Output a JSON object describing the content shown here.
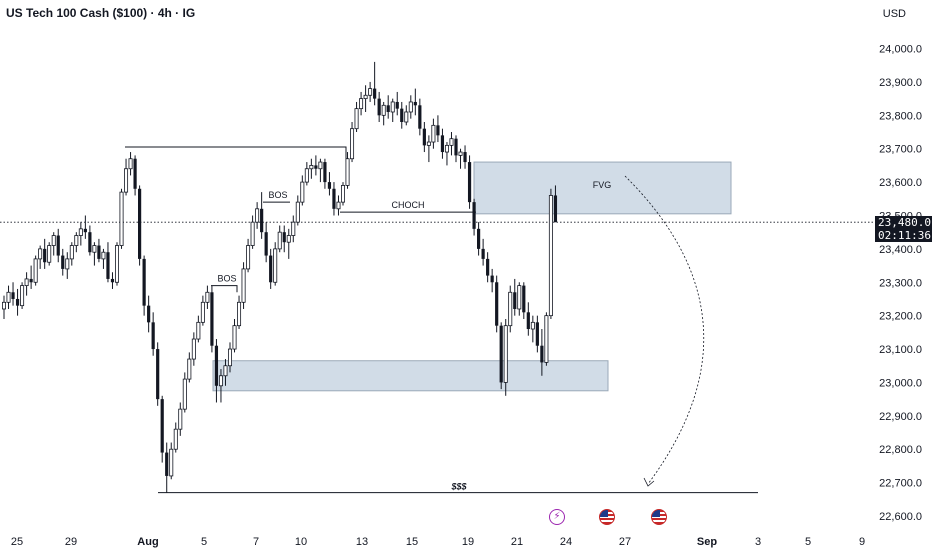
{
  "header": {
    "title": "US Tech 100 Cash ($100) · 4h · IG",
    "currency": "USD"
  },
  "price_tag": {
    "price": "23,480.0",
    "countdown": "02:11:36"
  },
  "colors": {
    "candle": "#131722",
    "zone_fill": "#c9d6e3",
    "zone_stroke": "#9aa9b8",
    "grid": "#e0e3eb",
    "event_bolt": "#9c27b0",
    "event_flag": "#c62828"
  },
  "events": [
    "lightning-icon",
    "us-flag-icon",
    "us-flag-icon"
  ],
  "chart_data": {
    "type": "candlestick",
    "title": "US Tech 100 Cash ($100) · 4h · IG",
    "y_axis": {
      "unit": "USD",
      "range": [
        22600,
        24000
      ],
      "tick_labels": [
        "24,000.0",
        "23,900.0",
        "23,800.0",
        "23,700.0",
        "23,600.0",
        "23,500.0",
        "23,400.0",
        "23,300.0",
        "23,200.0",
        "23,100.0",
        "23,000.0",
        "22,900.0",
        "22,800.0",
        "22,700.0",
        "22,600.0"
      ],
      "ticks": [
        24000,
        23900,
        23800,
        23700,
        23600,
        23500,
        23400,
        23300,
        23200,
        23100,
        23000,
        22900,
        22800,
        22700,
        22600
      ]
    },
    "x_axis": {
      "tick_labels": [
        "25",
        "29",
        "Aug",
        "5",
        "7",
        "10",
        "13",
        "15",
        "19",
        "21",
        "24",
        "27",
        "Sep",
        "3",
        "5",
        "9"
      ],
      "bold_labels": [
        "Aug",
        "Sep"
      ]
    },
    "current_price": 23480,
    "grid": false,
    "candles": [
      [
        23220,
        23260,
        23190,
        23240
      ],
      [
        23240,
        23290,
        23220,
        23270
      ],
      [
        23270,
        23300,
        23230,
        23250
      ],
      [
        23250,
        23280,
        23200,
        23230
      ],
      [
        23230,
        23300,
        23220,
        23290
      ],
      [
        23290,
        23330,
        23260,
        23310
      ],
      [
        23310,
        23350,
        23280,
        23300
      ],
      [
        23300,
        23380,
        23290,
        23370
      ],
      [
        23370,
        23410,
        23340,
        23400
      ],
      [
        23400,
        23430,
        23340,
        23360
      ],
      [
        23360,
        23420,
        23350,
        23410
      ],
      [
        23410,
        23450,
        23380,
        23440
      ],
      [
        23440,
        23460,
        23360,
        23380
      ],
      [
        23380,
        23400,
        23320,
        23340
      ],
      [
        23340,
        23390,
        23310,
        23370
      ],
      [
        23370,
        23420,
        23350,
        23410
      ],
      [
        23410,
        23450,
        23390,
        23440
      ],
      [
        23440,
        23480,
        23410,
        23460
      ],
      [
        23460,
        23500,
        23430,
        23450
      ],
      [
        23450,
        23470,
        23380,
        23390
      ],
      [
        23390,
        23420,
        23350,
        23410
      ],
      [
        23410,
        23430,
        23360,
        23370
      ],
      [
        23370,
        23400,
        23340,
        23390
      ],
      [
        23390,
        23420,
        23300,
        23310
      ],
      [
        23310,
        23330,
        23280,
        23300
      ],
      [
        23300,
        23420,
        23290,
        23410
      ],
      [
        23410,
        23580,
        23400,
        23570
      ],
      [
        23570,
        23670,
        23560,
        23640
      ],
      [
        23640,
        23690,
        23620,
        23670
      ],
      [
        23670,
        23680,
        23560,
        23580
      ],
      [
        23580,
        23590,
        23350,
        23370
      ],
      [
        23370,
        23380,
        23200,
        23230
      ],
      [
        23230,
        23260,
        23150,
        23180
      ],
      [
        23180,
        23210,
        23080,
        23100
      ],
      [
        23100,
        23120,
        22930,
        22950
      ],
      [
        22950,
        22960,
        22760,
        22790
      ],
      [
        22790,
        22820,
        22670,
        22720
      ],
      [
        22720,
        22820,
        22710,
        22800
      ],
      [
        22800,
        22880,
        22790,
        22860
      ],
      [
        22860,
        22940,
        22840,
        22920
      ],
      [
        22920,
        23030,
        22910,
        23010
      ],
      [
        23010,
        23090,
        23000,
        23070
      ],
      [
        23070,
        23150,
        23050,
        23130
      ],
      [
        23130,
        23200,
        23120,
        23180
      ],
      [
        23180,
        23260,
        23170,
        23240
      ],
      [
        23240,
        23290,
        23220,
        23270
      ],
      [
        23270,
        23290,
        23090,
        23110
      ],
      [
        23110,
        23130,
        22940,
        22990
      ],
      [
        22990,
        23040,
        22940,
        23020
      ],
      [
        23020,
        23070,
        22990,
        23050
      ],
      [
        23050,
        23120,
        23030,
        23100
      ],
      [
        23100,
        23190,
        23090,
        23170
      ],
      [
        23170,
        23260,
        23160,
        23240
      ],
      [
        23240,
        23360,
        23220,
        23340
      ],
      [
        23340,
        23430,
        23330,
        23410
      ],
      [
        23410,
        23500,
        23400,
        23480
      ],
      [
        23480,
        23540,
        23460,
        23520
      ],
      [
        23520,
        23570,
        23430,
        23450
      ],
      [
        23450,
        23480,
        23360,
        23380
      ],
      [
        23380,
        23400,
        23280,
        23300
      ],
      [
        23300,
        23420,
        23290,
        23400
      ],
      [
        23400,
        23470,
        23390,
        23450
      ],
      [
        23450,
        23470,
        23390,
        23420
      ],
      [
        23420,
        23460,
        23370,
        23440
      ],
      [
        23440,
        23500,
        23420,
        23480
      ],
      [
        23480,
        23560,
        23470,
        23540
      ],
      [
        23540,
        23620,
        23530,
        23600
      ],
      [
        23600,
        23660,
        23590,
        23640
      ],
      [
        23640,
        23670,
        23610,
        23650
      ],
      [
        23650,
        23680,
        23620,
        23640
      ],
      [
        23640,
        23670,
        23600,
        23660
      ],
      [
        23660,
        23670,
        23580,
        23600
      ],
      [
        23600,
        23630,
        23560,
        23580
      ],
      [
        23580,
        23600,
        23500,
        23520
      ],
      [
        23520,
        23560,
        23500,
        23540
      ],
      [
        23540,
        23600,
        23530,
        23590
      ],
      [
        23590,
        23690,
        23580,
        23670
      ],
      [
        23670,
        23780,
        23660,
        23760
      ],
      [
        23760,
        23840,
        23750,
        23820
      ],
      [
        23820,
        23870,
        23800,
        23850
      ],
      [
        23850,
        23890,
        23810,
        23860
      ],
      [
        23860,
        23900,
        23840,
        23880
      ],
      [
        23880,
        23960,
        23830,
        23850
      ],
      [
        23850,
        23870,
        23780,
        23800
      ],
      [
        23800,
        23840,
        23770,
        23830
      ],
      [
        23830,
        23860,
        23790,
        23810
      ],
      [
        23810,
        23850,
        23780,
        23840
      ],
      [
        23840,
        23870,
        23800,
        23820
      ],
      [
        23820,
        23840,
        23760,
        23780
      ],
      [
        23780,
        23830,
        23770,
        23810
      ],
      [
        23810,
        23860,
        23790,
        23840
      ],
      [
        23840,
        23880,
        23800,
        23830
      ],
      [
        23830,
        23850,
        23740,
        23760
      ],
      [
        23760,
        23780,
        23690,
        23710
      ],
      [
        23710,
        23740,
        23660,
        23720
      ],
      [
        23720,
        23790,
        23700,
        23770
      ],
      [
        23770,
        23800,
        23720,
        23740
      ],
      [
        23740,
        23760,
        23670,
        23690
      ],
      [
        23690,
        23720,
        23650,
        23710
      ],
      [
        23710,
        23750,
        23680,
        23730
      ],
      [
        23730,
        23740,
        23660,
        23680
      ],
      [
        23680,
        23700,
        23640,
        23690
      ],
      [
        23690,
        23710,
        23640,
        23660
      ],
      [
        23660,
        23680,
        23520,
        23540
      ],
      [
        23540,
        23550,
        23440,
        23460
      ],
      [
        23460,
        23480,
        23380,
        23400
      ],
      [
        23400,
        23430,
        23350,
        23370
      ],
      [
        23370,
        23390,
        23300,
        23320
      ],
      [
        23320,
        23340,
        23270,
        23300
      ],
      [
        23300,
        23320,
        23150,
        23170
      ],
      [
        23170,
        23180,
        22980,
        23000
      ],
      [
        23000,
        23190,
        22960,
        23170
      ],
      [
        23170,
        23290,
        23150,
        23270
      ],
      [
        23270,
        23310,
        23200,
        23220
      ],
      [
        23220,
        23300,
        23200,
        23290
      ],
      [
        23290,
        23300,
        23190,
        23210
      ],
      [
        23210,
        23240,
        23140,
        23160
      ],
      [
        23160,
        23200,
        23120,
        23180
      ],
      [
        23180,
        23200,
        23090,
        23110
      ],
      [
        23110,
        23160,
        23020,
        23060
      ],
      [
        23060,
        23210,
        23050,
        23200
      ],
      [
        23200,
        23580,
        23190,
        23560
      ],
      [
        23560,
        23590,
        23480,
        23480
      ]
    ],
    "annotations": [
      {
        "label": "BOS",
        "level": 23290
      },
      {
        "label": "BOS",
        "level": 23540
      },
      {
        "label": "CHOCH",
        "level": 23510
      },
      {
        "label": "FVG",
        "zone": [
          23505,
          23660
        ]
      },
      {
        "label": "$$$",
        "level": 22670
      }
    ],
    "zones": [
      {
        "name": "FVG",
        "low": 23505,
        "high": 23660
      },
      {
        "name": "demand",
        "low": 22975,
        "high": 23065
      }
    ],
    "projection": "dashed arc from FVG down toward $$$"
  }
}
